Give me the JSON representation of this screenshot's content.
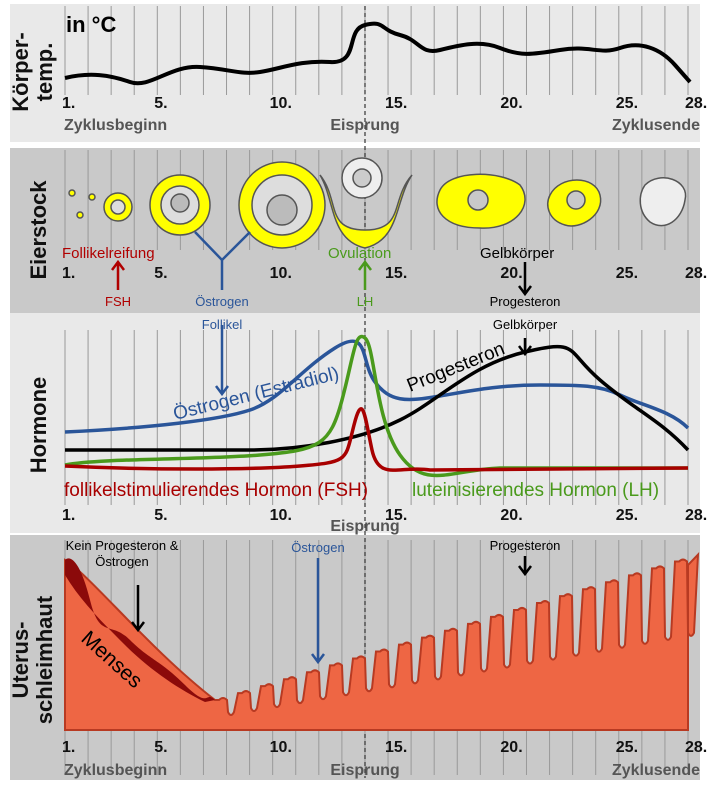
{
  "temperature": {
    "label_lines": [
      "Körper-",
      "temp."
    ],
    "unit": "in °C"
  },
  "days": [
    "1.",
    "5.",
    "10.",
    "15.",
    "20.",
    "25.",
    "28."
  ],
  "phases": {
    "start": "Zyklusbeginn",
    "ovulation": "Eisprung",
    "end": "Zyklusende"
  },
  "ovary": {
    "label": "Eierstock",
    "maturation": "Follikelreifung",
    "ovulation": "Ovulation",
    "corpus_luteum": "Gelbkörper",
    "fsh": "FSH",
    "estrogen": "Östrogen",
    "lh": "LH",
    "progesterone": "Progesteron",
    "follicle": "Follikel",
    "corpus_luteum_2": "Gelbkörper"
  },
  "hormones": {
    "label": "Hormone",
    "estrogen": "Östrogen (Estradiol)",
    "progesterone": "Progesteron",
    "fsh": "follikelstimulierendes Hormon (FSH)",
    "lh": "luteinisierendes Hormon (LH)",
    "ovulation": "Eisprung"
  },
  "uterus": {
    "label_lines": [
      "Uterus-",
      "schleimhaut"
    ],
    "no_hormones_lines": [
      "Kein Progesteron &",
      "Östrogen"
    ],
    "estrogen": "Östrogen",
    "progesterone": "Progesteron",
    "menses": "Menses"
  }
}
